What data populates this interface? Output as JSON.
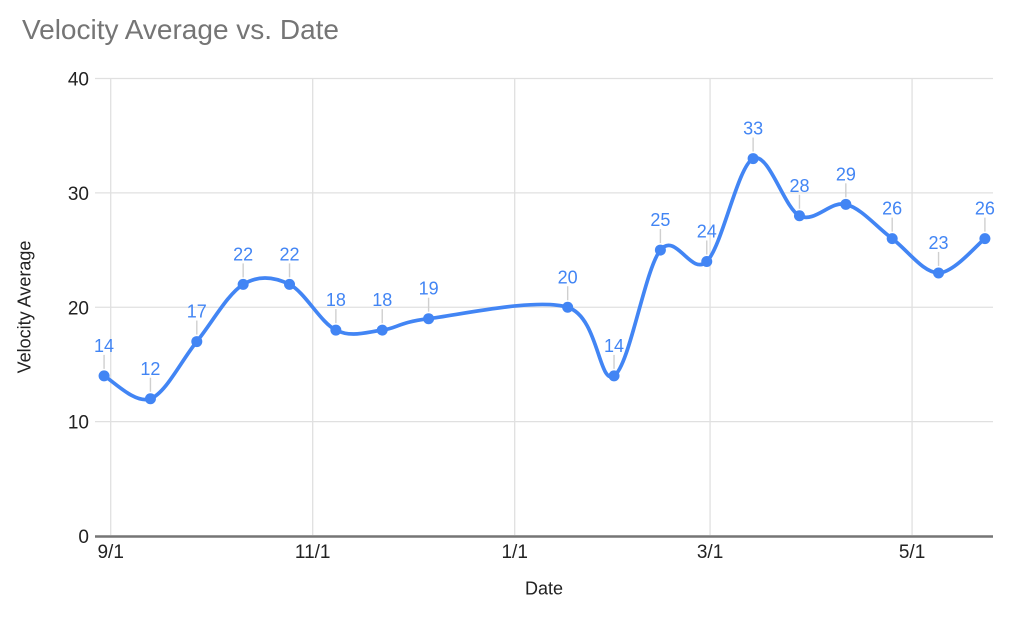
{
  "chart_data": {
    "type": "line",
    "title": "Velocity Average vs. Date",
    "xlabel": "Date",
    "ylabel": "Velocity Average",
    "grid": true,
    "legend_position": "none",
    "smooth_line": true,
    "show_point_labels": true,
    "x_axis": {
      "tick_labels": [
        "9/1",
        "11/1",
        "1/1",
        "3/1",
        "5/1"
      ],
      "tick_days": [
        0,
        61,
        122,
        181,
        242
      ]
    },
    "y_axis": {
      "ticks": [
        0,
        10,
        20,
        30,
        40
      ],
      "min": 0,
      "max": 40
    },
    "series": [
      {
        "name": "Velocity Average",
        "x_days": [
          -2,
          12,
          26,
          40,
          54,
          68,
          82,
          96,
          138,
          152,
          166,
          180,
          194,
          208,
          222,
          236,
          250,
          264
        ],
        "values": [
          14,
          12,
          17,
          22,
          22,
          18,
          18,
          19,
          20,
          14,
          25,
          24,
          33,
          28,
          29,
          26,
          23,
          26
        ]
      }
    ],
    "colors": {
      "series_line": "#4285f4",
      "series_point": "#4285f4",
      "point_label": "#4285f4",
      "title_text": "#757575",
      "axis_text": "#222222",
      "gridline": "#e0e0e0",
      "axis_line": "#757575",
      "leader_line": "#cfcfcf",
      "background": "#ffffff"
    }
  }
}
